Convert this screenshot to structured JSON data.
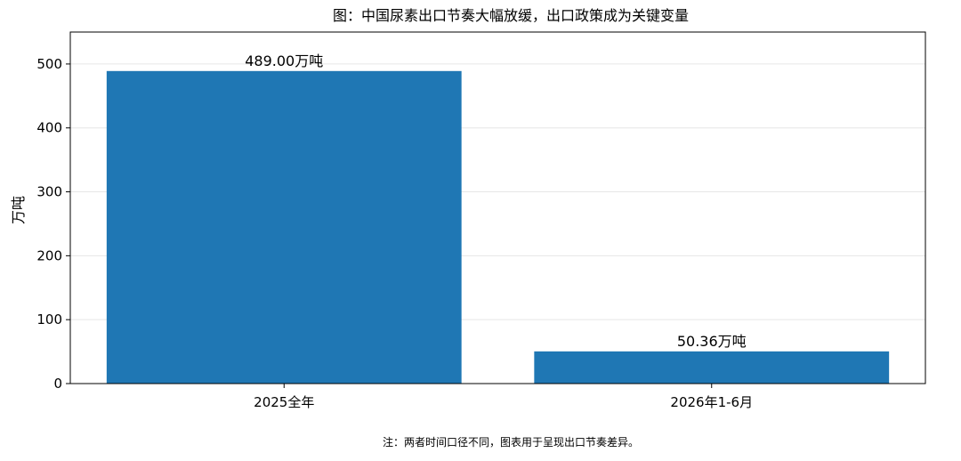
{
  "chart_data": {
    "type": "bar",
    "title": "图：中国尿素出口节奏大幅放缓，出口政策成为关键变量",
    "xlabel": "",
    "ylabel": "万吨",
    "categories": [
      "2025全年",
      "2026年1-6月"
    ],
    "values": [
      489.0,
      50.36
    ],
    "data_labels": [
      "489.00万吨",
      "50.36万吨"
    ],
    "ylim": [
      0,
      550
    ],
    "yticks": [
      0,
      100,
      200,
      300,
      400,
      500
    ],
    "ytick_labels": [
      "0",
      "100",
      "200",
      "300",
      "400",
      "500"
    ],
    "grid": "horizontal",
    "bar_color": "#1f77b4",
    "note": "注：两者时间口径不同，图表用于呈现出口节奏差异。"
  }
}
